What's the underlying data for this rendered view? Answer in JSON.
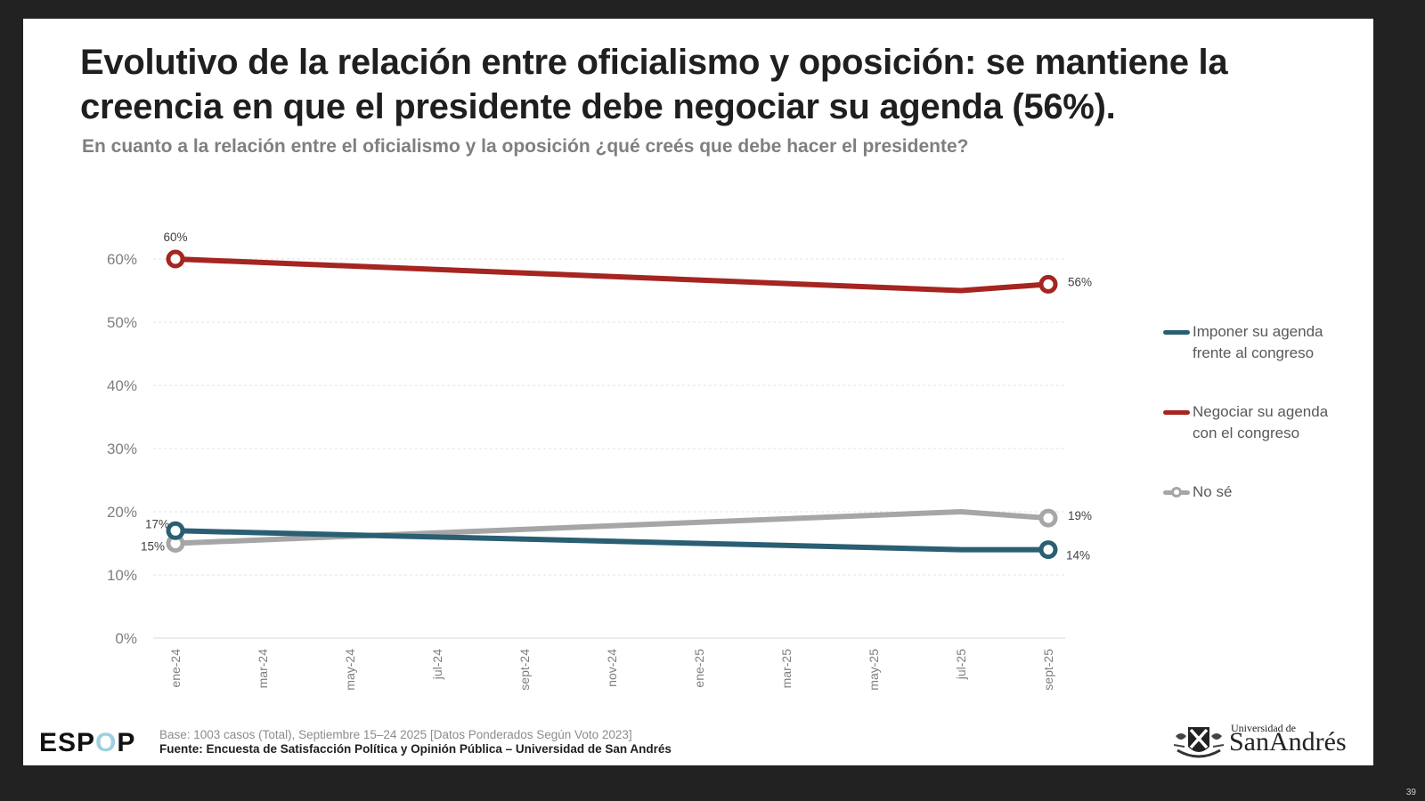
{
  "slide": {
    "title": "Evolutivo de la relación entre oficialismo y oposición: se mantiene la creencia en que el presidente debe negociar su agenda (56%).",
    "subtitle": "En cuanto a la relación entre el oficialismo y la oposición ¿qué creés que debe hacer el presidente?",
    "page_number": "39"
  },
  "footer": {
    "logo_prefix": "ESP",
    "logo_o": "O",
    "logo_suffix": "P",
    "base": "Base: 1003 casos (Total), Septiembre 15–24 2025 [Datos Ponderados Según Voto 2023]",
    "source": "Fuente: Encuesta de Satisfacción Política y Opinión Pública – Universidad de San Andrés",
    "university_small": "Universidad de",
    "university_big": "SanAndrés"
  },
  "chart_data": {
    "type": "line",
    "title": "",
    "xlabel": "",
    "ylabel": "",
    "ylim": [
      0,
      60
    ],
    "yticks": [
      0,
      10,
      20,
      30,
      40,
      50,
      60
    ],
    "ytick_labels": [
      "0%",
      "10%",
      "20%",
      "30%",
      "40%",
      "50%",
      "60%"
    ],
    "grid": true,
    "legend_position": "right",
    "categories": [
      "ene-24",
      "mar-24",
      "may-24",
      "jul-24",
      "sept-24",
      "nov-24",
      "ene-25",
      "mar-25",
      "may-25",
      "jul-25",
      "sept-25"
    ],
    "series": [
      {
        "name": "Imponer su agenda frente al congreso",
        "legend_lines": [
          "Imponer su agenda",
          "frente al congreso"
        ],
        "color": "#2a5f73",
        "points": [
          {
            "x": "ene-24",
            "y": 17
          },
          {
            "x": "jul-25",
            "y": 14
          },
          {
            "x": "sept-25",
            "y": 14
          }
        ],
        "labels": [
          {
            "x": "ene-24",
            "text": "17%",
            "pos": "left"
          },
          {
            "x": "sept-25",
            "text": "14%",
            "pos": "right-below"
          }
        ],
        "markers": [
          "ene-24",
          "sept-25"
        ]
      },
      {
        "name": "Negociar su agenda con el congreso",
        "legend_lines": [
          "Negociar su agenda",
          "con el congreso"
        ],
        "color": "#a52520",
        "points": [
          {
            "x": "ene-24",
            "y": 60
          },
          {
            "x": "jul-25",
            "y": 55
          },
          {
            "x": "sept-25",
            "y": 56
          }
        ],
        "labels": [
          {
            "x": "ene-24",
            "text": "60%",
            "pos": "above"
          },
          {
            "x": "sept-25",
            "text": "56%",
            "pos": "right"
          }
        ],
        "markers": [
          "ene-24",
          "sept-25"
        ]
      },
      {
        "name": "No sé",
        "legend_lines": [
          "No sé"
        ],
        "color": "#a6a6a6",
        "points": [
          {
            "x": "ene-24",
            "y": 15
          },
          {
            "x": "jul-25",
            "y": 20
          },
          {
            "x": "sept-25",
            "y": 19
          }
        ],
        "labels": [
          {
            "x": "ene-24",
            "text": "15%",
            "pos": "left"
          },
          {
            "x": "sept-25",
            "text": "19%",
            "pos": "right"
          }
        ],
        "markers": [
          "ene-24",
          "sept-25"
        ]
      }
    ]
  }
}
